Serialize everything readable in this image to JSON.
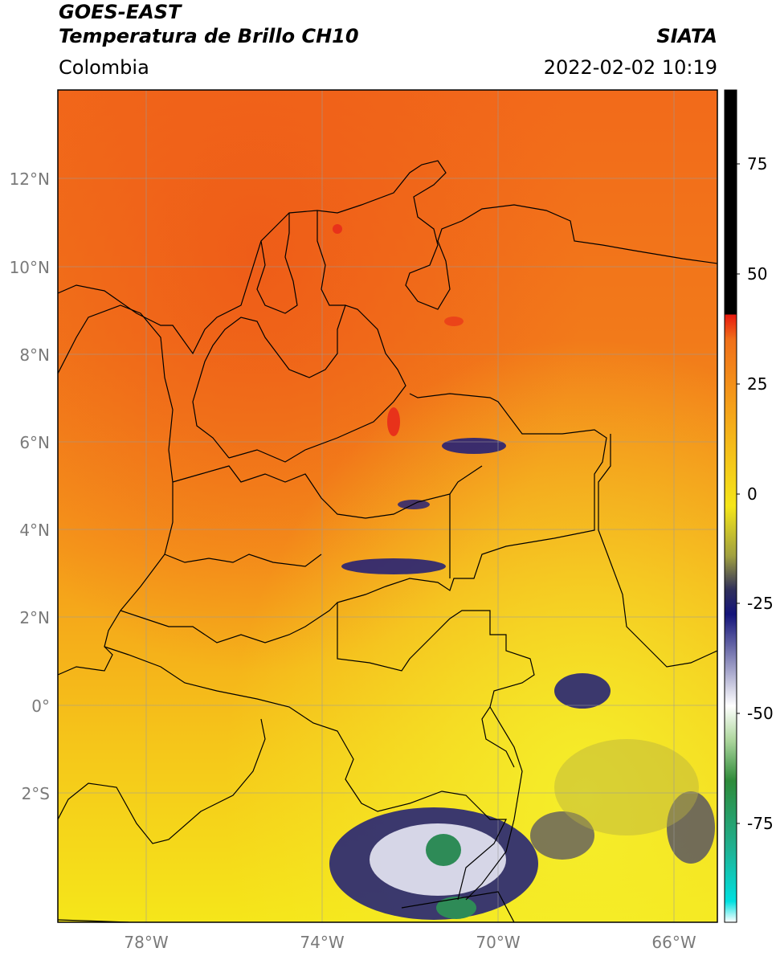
{
  "header": {
    "satellite": "GOES-EAST",
    "product": "Temperatura de Brillo CH10",
    "source": "SIATA",
    "region": "Colombia",
    "datetime": "2022-02-02 10:19"
  },
  "map": {
    "lat_ticks": [
      "12°N",
      "10°N",
      "8°N",
      "6°N",
      "4°N",
      "2°N",
      "0°",
      "2°S"
    ],
    "lon_ticks": [
      "78°W",
      "74°W",
      "70°W",
      "66°W"
    ]
  },
  "colorbar": {
    "tick_labels": [
      "75",
      "50",
      "25",
      "0",
      "-25",
      "-50",
      "-75"
    ],
    "colors": {
      "warm_orange": "#f08c1a",
      "hot_red": "#e8321a",
      "yellow": "#f5e61a",
      "navy": "#1a1a7a",
      "green": "#2e8b57",
      "cyan": "#00d7d7",
      "black": "#000000"
    }
  }
}
